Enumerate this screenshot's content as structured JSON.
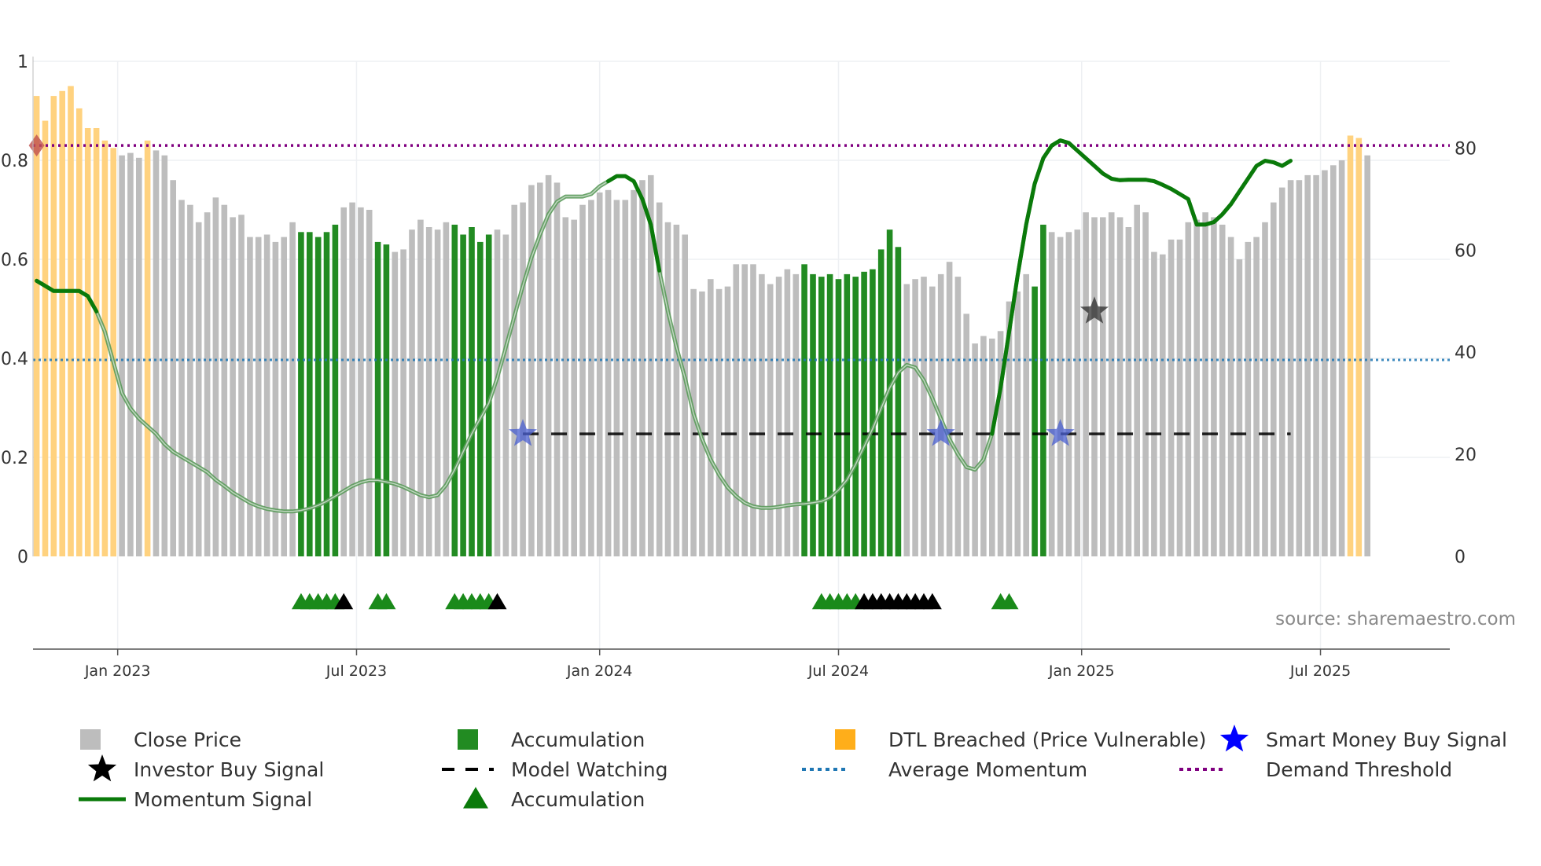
{
  "chart_data": {
    "type": "bar",
    "title": "",
    "source": "source: sharemaestro.com",
    "left_axis": {
      "range": [
        0,
        1
      ],
      "ticks": [
        0,
        0.2,
        0.4,
        0.6,
        0.8,
        1
      ],
      "tick_labels": [
        "0",
        "0.2",
        "0.4",
        "0.6",
        "0.8",
        "1"
      ]
    },
    "right_axis": {
      "range": [
        0,
        97
      ],
      "ticks": [
        0,
        20,
        40,
        60,
        80
      ],
      "tick_labels": [
        "0",
        "20",
        "40",
        "60",
        "80"
      ]
    },
    "x_axis": {
      "labels": [
        "Jan 2023",
        "Jul 2023",
        "Jan 2024",
        "Jul 2024",
        "Jan 2025",
        "Jul 2025"
      ],
      "label_bars": [
        9.5,
        37.5,
        66,
        94,
        122.5,
        150.5
      ]
    },
    "colors": {
      "close": "#bdbdbd",
      "accumulation": "#228b22",
      "dtl": "#ffd27f",
      "momentum": "#0a7a0a",
      "model_watching": "#000000",
      "average_momentum": "#1f77b4",
      "demand_threshold": "#800080",
      "smart_money": "#0000ff",
      "investor": "#000000"
    },
    "bars": [
      {
        "v": 0.93,
        "c": "dtl"
      },
      {
        "v": 0.88,
        "c": "dtl"
      },
      {
        "v": 0.93,
        "c": "dtl"
      },
      {
        "v": 0.94,
        "c": "dtl"
      },
      {
        "v": 0.95,
        "c": "dtl"
      },
      {
        "v": 0.905,
        "c": "dtl"
      },
      {
        "v": 0.865,
        "c": "dtl"
      },
      {
        "v": 0.865,
        "c": "dtl"
      },
      {
        "v": 0.84,
        "c": "dtl"
      },
      {
        "v": 0.825,
        "c": "dtl"
      },
      {
        "v": 0.81,
        "c": "close"
      },
      {
        "v": 0.815,
        "c": "close"
      },
      {
        "v": 0.805,
        "c": "close"
      },
      {
        "v": 0.84,
        "c": "dtl"
      },
      {
        "v": 0.82,
        "c": "close"
      },
      {
        "v": 0.81,
        "c": "close"
      },
      {
        "v": 0.76,
        "c": "close"
      },
      {
        "v": 0.72,
        "c": "close"
      },
      {
        "v": 0.71,
        "c": "close"
      },
      {
        "v": 0.675,
        "c": "close"
      },
      {
        "v": 0.695,
        "c": "close"
      },
      {
        "v": 0.725,
        "c": "close"
      },
      {
        "v": 0.71,
        "c": "close"
      },
      {
        "v": 0.685,
        "c": "close"
      },
      {
        "v": 0.69,
        "c": "close"
      },
      {
        "v": 0.645,
        "c": "close"
      },
      {
        "v": 0.645,
        "c": "close"
      },
      {
        "v": 0.65,
        "c": "close"
      },
      {
        "v": 0.635,
        "c": "close"
      },
      {
        "v": 0.645,
        "c": "close"
      },
      {
        "v": 0.675,
        "c": "close"
      },
      {
        "v": 0.655,
        "c": "acc"
      },
      {
        "v": 0.655,
        "c": "acc"
      },
      {
        "v": 0.645,
        "c": "acc"
      },
      {
        "v": 0.655,
        "c": "acc"
      },
      {
        "v": 0.67,
        "c": "acc"
      },
      {
        "v": 0.705,
        "c": "close"
      },
      {
        "v": 0.715,
        "c": "close"
      },
      {
        "v": 0.705,
        "c": "close"
      },
      {
        "v": 0.7,
        "c": "close"
      },
      {
        "v": 0.635,
        "c": "acc"
      },
      {
        "v": 0.63,
        "c": "acc"
      },
      {
        "v": 0.615,
        "c": "close"
      },
      {
        "v": 0.62,
        "c": "close"
      },
      {
        "v": 0.66,
        "c": "close"
      },
      {
        "v": 0.68,
        "c": "close"
      },
      {
        "v": 0.665,
        "c": "close"
      },
      {
        "v": 0.66,
        "c": "close"
      },
      {
        "v": 0.675,
        "c": "close"
      },
      {
        "v": 0.67,
        "c": "acc"
      },
      {
        "v": 0.65,
        "c": "acc"
      },
      {
        "v": 0.665,
        "c": "acc"
      },
      {
        "v": 0.635,
        "c": "acc"
      },
      {
        "v": 0.65,
        "c": "acc"
      },
      {
        "v": 0.66,
        "c": "close"
      },
      {
        "v": 0.65,
        "c": "close"
      },
      {
        "v": 0.71,
        "c": "close"
      },
      {
        "v": 0.715,
        "c": "close"
      },
      {
        "v": 0.75,
        "c": "close"
      },
      {
        "v": 0.755,
        "c": "close"
      },
      {
        "v": 0.77,
        "c": "close"
      },
      {
        "v": 0.755,
        "c": "close"
      },
      {
        "v": 0.685,
        "c": "close"
      },
      {
        "v": 0.68,
        "c": "close"
      },
      {
        "v": 0.71,
        "c": "close"
      },
      {
        "v": 0.72,
        "c": "close"
      },
      {
        "v": 0.735,
        "c": "close"
      },
      {
        "v": 0.74,
        "c": "close"
      },
      {
        "v": 0.72,
        "c": "close"
      },
      {
        "v": 0.72,
        "c": "close"
      },
      {
        "v": 0.74,
        "c": "close"
      },
      {
        "v": 0.76,
        "c": "close"
      },
      {
        "v": 0.77,
        "c": "close"
      },
      {
        "v": 0.715,
        "c": "close"
      },
      {
        "v": 0.675,
        "c": "close"
      },
      {
        "v": 0.67,
        "c": "close"
      },
      {
        "v": 0.65,
        "c": "close"
      },
      {
        "v": 0.54,
        "c": "close"
      },
      {
        "v": 0.535,
        "c": "close"
      },
      {
        "v": 0.56,
        "c": "close"
      },
      {
        "v": 0.54,
        "c": "close"
      },
      {
        "v": 0.545,
        "c": "close"
      },
      {
        "v": 0.59,
        "c": "close"
      },
      {
        "v": 0.59,
        "c": "close"
      },
      {
        "v": 0.59,
        "c": "close"
      },
      {
        "v": 0.57,
        "c": "close"
      },
      {
        "v": 0.55,
        "c": "close"
      },
      {
        "v": 0.565,
        "c": "close"
      },
      {
        "v": 0.58,
        "c": "close"
      },
      {
        "v": 0.57,
        "c": "close"
      },
      {
        "v": 0.59,
        "c": "acc"
      },
      {
        "v": 0.57,
        "c": "acc"
      },
      {
        "v": 0.565,
        "c": "acc"
      },
      {
        "v": 0.57,
        "c": "acc"
      },
      {
        "v": 0.56,
        "c": "acc"
      },
      {
        "v": 0.57,
        "c": "acc"
      },
      {
        "v": 0.565,
        "c": "acc"
      },
      {
        "v": 0.575,
        "c": "acc"
      },
      {
        "v": 0.58,
        "c": "acc"
      },
      {
        "v": 0.62,
        "c": "acc"
      },
      {
        "v": 0.66,
        "c": "acc"
      },
      {
        "v": 0.625,
        "c": "acc"
      },
      {
        "v": 0.55,
        "c": "close"
      },
      {
        "v": 0.56,
        "c": "close"
      },
      {
        "v": 0.565,
        "c": "close"
      },
      {
        "v": 0.545,
        "c": "close"
      },
      {
        "v": 0.57,
        "c": "close"
      },
      {
        "v": 0.595,
        "c": "close"
      },
      {
        "v": 0.565,
        "c": "close"
      },
      {
        "v": 0.49,
        "c": "close"
      },
      {
        "v": 0.43,
        "c": "close"
      },
      {
        "v": 0.445,
        "c": "close"
      },
      {
        "v": 0.44,
        "c": "close"
      },
      {
        "v": 0.455,
        "c": "close"
      },
      {
        "v": 0.515,
        "c": "close"
      },
      {
        "v": 0.535,
        "c": "close"
      },
      {
        "v": 0.57,
        "c": "close"
      },
      {
        "v": 0.545,
        "c": "acc"
      },
      {
        "v": 0.67,
        "c": "acc"
      },
      {
        "v": 0.655,
        "c": "close"
      },
      {
        "v": 0.645,
        "c": "close"
      },
      {
        "v": 0.655,
        "c": "close"
      },
      {
        "v": 0.66,
        "c": "close"
      },
      {
        "v": 0.695,
        "c": "close"
      },
      {
        "v": 0.685,
        "c": "close"
      },
      {
        "v": 0.685,
        "c": "close"
      },
      {
        "v": 0.695,
        "c": "close"
      },
      {
        "v": 0.685,
        "c": "close"
      },
      {
        "v": 0.665,
        "c": "close"
      },
      {
        "v": 0.71,
        "c": "close"
      },
      {
        "v": 0.695,
        "c": "close"
      },
      {
        "v": 0.615,
        "c": "close"
      },
      {
        "v": 0.61,
        "c": "close"
      },
      {
        "v": 0.64,
        "c": "close"
      },
      {
        "v": 0.64,
        "c": "close"
      },
      {
        "v": 0.675,
        "c": "close"
      },
      {
        "v": 0.68,
        "c": "close"
      },
      {
        "v": 0.695,
        "c": "close"
      },
      {
        "v": 0.685,
        "c": "close"
      },
      {
        "v": 0.67,
        "c": "close"
      },
      {
        "v": 0.645,
        "c": "close"
      },
      {
        "v": 0.6,
        "c": "close"
      },
      {
        "v": 0.635,
        "c": "close"
      },
      {
        "v": 0.645,
        "c": "close"
      },
      {
        "v": 0.675,
        "c": "close"
      },
      {
        "v": 0.715,
        "c": "close"
      },
      {
        "v": 0.745,
        "c": "close"
      },
      {
        "v": 0.76,
        "c": "close"
      },
      {
        "v": 0.76,
        "c": "close"
      },
      {
        "v": 0.77,
        "c": "close"
      },
      {
        "v": 0.77,
        "c": "close"
      },
      {
        "v": 0.78,
        "c": "close"
      },
      {
        "v": 0.79,
        "c": "close"
      },
      {
        "v": 0.8,
        "c": "close"
      },
      {
        "v": 0.85,
        "c": "dtl"
      },
      {
        "v": 0.845,
        "c": "dtl"
      },
      {
        "v": 0.81,
        "c": "close"
      }
    ],
    "momentum_signal": [
      [
        0,
        54
      ],
      [
        1,
        53
      ],
      [
        2,
        52
      ],
      [
        3,
        52
      ],
      [
        4,
        52
      ],
      [
        5,
        52
      ],
      [
        6,
        51
      ],
      [
        7,
        48
      ],
      [
        8,
        44
      ],
      [
        9,
        38
      ],
      [
        10,
        32
      ],
      [
        11,
        29
      ],
      [
        12,
        27
      ],
      [
        13,
        25.5
      ],
      [
        14,
        24
      ],
      [
        15,
        22
      ],
      [
        16,
        20.5
      ],
      [
        17,
        19.5
      ],
      [
        18,
        18.5
      ],
      [
        19,
        17.5
      ],
      [
        20,
        16.5
      ],
      [
        21,
        15
      ],
      [
        22,
        13.8
      ],
      [
        23,
        12.5
      ],
      [
        24,
        11.5
      ],
      [
        25,
        10.5
      ],
      [
        26,
        9.8
      ],
      [
        27,
        9.3
      ],
      [
        28,
        9
      ],
      [
        29,
        8.8
      ],
      [
        30,
        8.8
      ],
      [
        31,
        9
      ],
      [
        32,
        9.4
      ],
      [
        33,
        10
      ],
      [
        34,
        10.8
      ],
      [
        35,
        11.8
      ],
      [
        36,
        12.8
      ],
      [
        37,
        13.8
      ],
      [
        38,
        14.5
      ],
      [
        39,
        14.9
      ],
      [
        40,
        14.9
      ],
      [
        41,
        14.6
      ],
      [
        42,
        14.2
      ],
      [
        43,
        13.6
      ],
      [
        44,
        12.8
      ],
      [
        45,
        12
      ],
      [
        46,
        11.6
      ],
      [
        47,
        12
      ],
      [
        48,
        14
      ],
      [
        49,
        17
      ],
      [
        50,
        20.5
      ],
      [
        51,
        24
      ],
      [
        52,
        27
      ],
      [
        53,
        30
      ],
      [
        54,
        35
      ],
      [
        55,
        41
      ],
      [
        56,
        47
      ],
      [
        57,
        53
      ],
      [
        58,
        58.5
      ],
      [
        59,
        63
      ],
      [
        60,
        67
      ],
      [
        61,
        69.5
      ],
      [
        62,
        70.5
      ],
      [
        63,
        70.5
      ],
      [
        64,
        70.5
      ],
      [
        65,
        71
      ],
      [
        66,
        72.5
      ],
      [
        67,
        73.5
      ],
      [
        68,
        74.5
      ],
      [
        69,
        74.5
      ],
      [
        70,
        73.5
      ],
      [
        71,
        70
      ],
      [
        72,
        65
      ],
      [
        73,
        56
      ],
      [
        74,
        48
      ],
      [
        75,
        41
      ],
      [
        76,
        35
      ],
      [
        77,
        28
      ],
      [
        78,
        23
      ],
      [
        79,
        19
      ],
      [
        80,
        16
      ],
      [
        81,
        13.5
      ],
      [
        82,
        11.8
      ],
      [
        83,
        10.5
      ],
      [
        84,
        9.8
      ],
      [
        85,
        9.5
      ],
      [
        86,
        9.5
      ],
      [
        87,
        9.7
      ],
      [
        88,
        10
      ],
      [
        89,
        10.2
      ],
      [
        90,
        10.3
      ],
      [
        91,
        10.5
      ],
      [
        92,
        10.8
      ],
      [
        93,
        11.5
      ],
      [
        94,
        13
      ],
      [
        95,
        15
      ],
      [
        96,
        18
      ],
      [
        97,
        21.5
      ],
      [
        98,
        25
      ],
      [
        99,
        29
      ],
      [
        100,
        33
      ],
      [
        101,
        36
      ],
      [
        102,
        37.5
      ],
      [
        103,
        37
      ],
      [
        104,
        34.5
      ],
      [
        105,
        31
      ],
      [
        106,
        27
      ],
      [
        107,
        23
      ],
      [
        108,
        20
      ],
      [
        109,
        17.5
      ],
      [
        110,
        17
      ],
      [
        111,
        19
      ],
      [
        112,
        24
      ],
      [
        113,
        33
      ],
      [
        114,
        44
      ],
      [
        115,
        55
      ],
      [
        116,
        65
      ],
      [
        117,
        73
      ],
      [
        118,
        78
      ],
      [
        119,
        80.5
      ],
      [
        120,
        81.5
      ],
      [
        121,
        81
      ],
      [
        122,
        79.5
      ],
      [
        123,
        78
      ],
      [
        124,
        76.5
      ],
      [
        125,
        75
      ],
      [
        126,
        74
      ],
      [
        127,
        73.7
      ],
      [
        128,
        73.8
      ],
      [
        129,
        73.8
      ],
      [
        130,
        73.8
      ],
      [
        131,
        73.5
      ],
      [
        132,
        72.8
      ],
      [
        133,
        72
      ],
      [
        134,
        71
      ],
      [
        135,
        70
      ],
      [
        136,
        65
      ],
      [
        137,
        65
      ],
      [
        138,
        65.5
      ],
      [
        139,
        67
      ],
      [
        140,
        69
      ],
      [
        141,
        71.5
      ],
      [
        142,
        74
      ],
      [
        143,
        76.5
      ],
      [
        144,
        77.5
      ],
      [
        145,
        77.2
      ],
      [
        146,
        76.5
      ],
      [
        147,
        77.5
      ]
    ],
    "momentum_bright_ranges": [
      [
        0,
        7
      ],
      [
        67,
        73
      ],
      [
        112,
        147
      ]
    ],
    "demand_threshold": 80.5,
    "average_momentum": 38.5,
    "model_watching": {
      "value": 24,
      "from": 57,
      "to": 147
    },
    "smart_money_buy_signal": [
      [
        57,
        24
      ],
      [
        106,
        24
      ],
      [
        120,
        24
      ]
    ],
    "investor_buy_signal": [
      [
        124,
        48
      ]
    ],
    "dtl_marker": [
      [
        0,
        80.5
      ]
    ],
    "accumulation_triangles": [
      31,
      32,
      33,
      34,
      35,
      40,
      41,
      49,
      50,
      51,
      52,
      53,
      92,
      93,
      94,
      95,
      96,
      113,
      114
    ],
    "investor_triangles": [
      36,
      54,
      97,
      98,
      99,
      100,
      101,
      102,
      103,
      104,
      105
    ],
    "legend": [
      {
        "label": "Close Price",
        "symbol": "square",
        "color": "#bdbdbd"
      },
      {
        "label": "Accumulation",
        "symbol": "square",
        "color": "#228b22"
      },
      {
        "label": "DTL Breached (Price Vulnerable)",
        "symbol": "square",
        "color": "#ffae1a"
      },
      {
        "label": "Smart Money Buy Signal",
        "symbol": "star",
        "color": "#0000ff"
      },
      {
        "label": "Investor Buy Signal",
        "symbol": "star",
        "color": "#000000"
      },
      {
        "label": "Model Watching",
        "symbol": "dash",
        "color": "#000000"
      },
      {
        "label": "Average Momentum",
        "symbol": "dot",
        "color": "#1f77b4"
      },
      {
        "label": "Demand Threshold",
        "symbol": "dot",
        "color": "#800080"
      },
      {
        "label": "Momentum Signal",
        "symbol": "line",
        "color": "#0a7a0a"
      },
      {
        "label": "Accumulation",
        "symbol": "triangle",
        "color": "#0a7a0a"
      }
    ]
  }
}
